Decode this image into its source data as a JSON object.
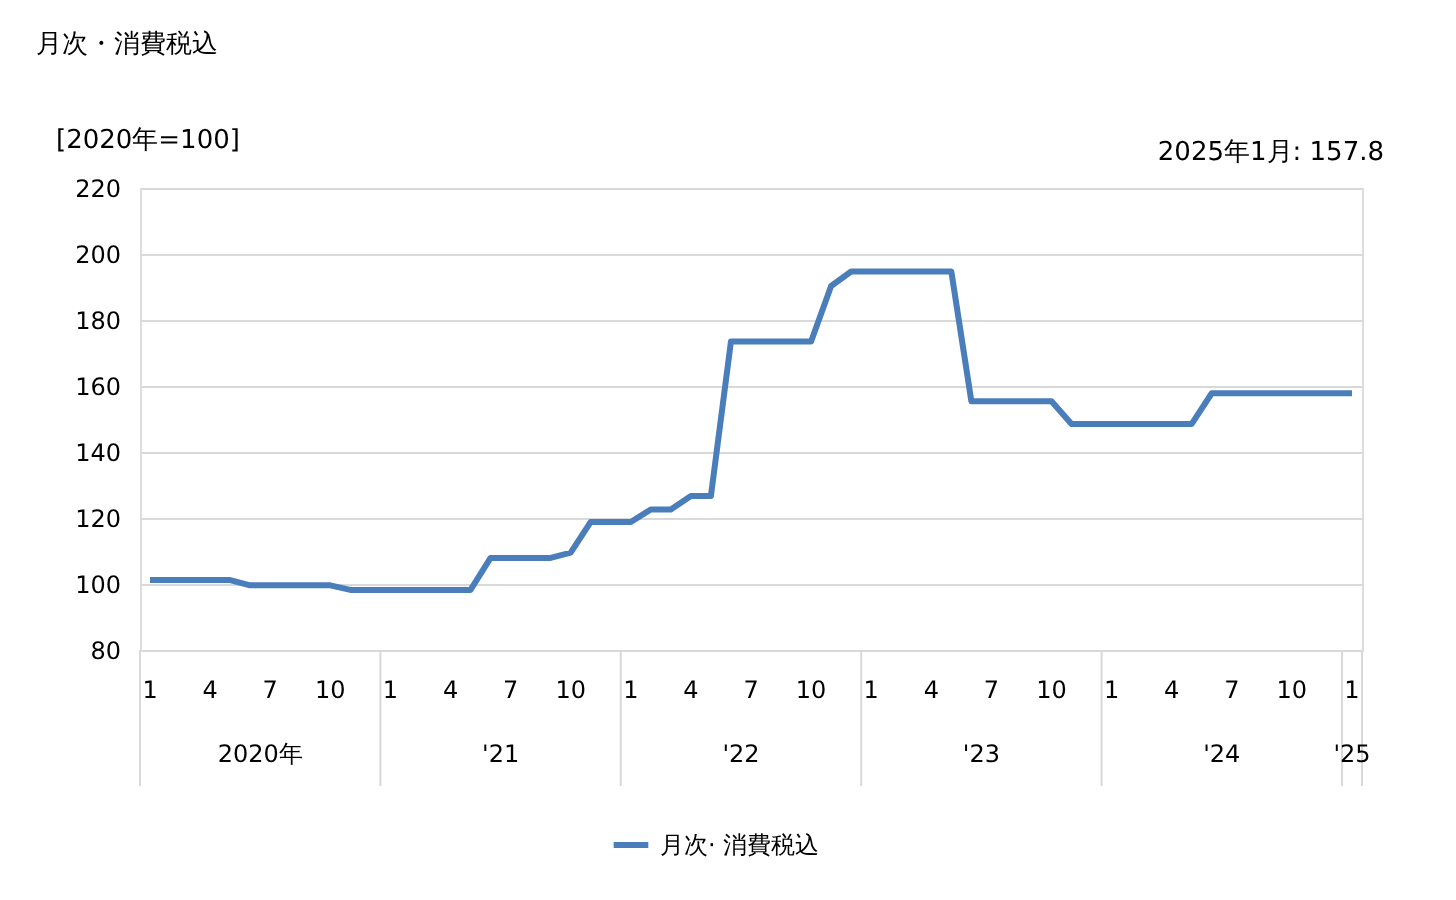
{
  "chart_data": {
    "type": "line",
    "title": "月次・消費税込",
    "ylabel": "[2020年=100]",
    "categories": [
      "1",
      null,
      null,
      "4",
      null,
      null,
      "7",
      null,
      null,
      "10",
      null,
      null,
      "1",
      null,
      null,
      "4",
      null,
      null,
      "7",
      null,
      null,
      "10",
      null,
      null,
      "1",
      null,
      null,
      "4",
      null,
      null,
      "7",
      null,
      null,
      "10",
      null,
      null,
      "1",
      null,
      null,
      "4",
      null,
      null,
      "7",
      null,
      null,
      "10",
      null,
      null,
      "1",
      null,
      null,
      "4",
      null,
      null,
      "7",
      null,
      null,
      "10",
      null,
      null,
      "1"
    ],
    "series": [
      {
        "name": "月次· 消費税込",
        "color": "#4a7ebb",
        "values": [
          101.2,
          101.2,
          101.2,
          101.2,
          101.2,
          99.6,
          99.6,
          99.6,
          99.6,
          99.6,
          98.2,
          98.2,
          98.2,
          98.2,
          98.2,
          98.2,
          98.2,
          107.9,
          107.9,
          107.9,
          107.9,
          109.5,
          118.8,
          118.8,
          118.8,
          122.6,
          122.6,
          126.7,
          126.7,
          173.5,
          173.5,
          173.5,
          173.5,
          173.5,
          190.3,
          194.7,
          194.7,
          194.7,
          194.7,
          194.7,
          194.7,
          155.4,
          155.4,
          155.4,
          155.4,
          155.4,
          148.5,
          148.5,
          148.5,
          148.5,
          148.5,
          148.5,
          148.5,
          157.8,
          157.8,
          157.8,
          157.8,
          157.8,
          157.8,
          157.8,
          157.8
        ]
      }
    ],
    "ylim": [
      80,
      220
    ],
    "yticks": [
      80,
      100,
      120,
      140,
      160,
      180,
      200,
      220
    ],
    "grid": "y",
    "legend": "bottom",
    "marker": "none",
    "line_style": "solid",
    "annotations": [
      "2020年",
      "'21",
      "'22",
      "'23",
      "'24",
      "'25",
      "2025年1月: 157.8"
    ]
  }
}
